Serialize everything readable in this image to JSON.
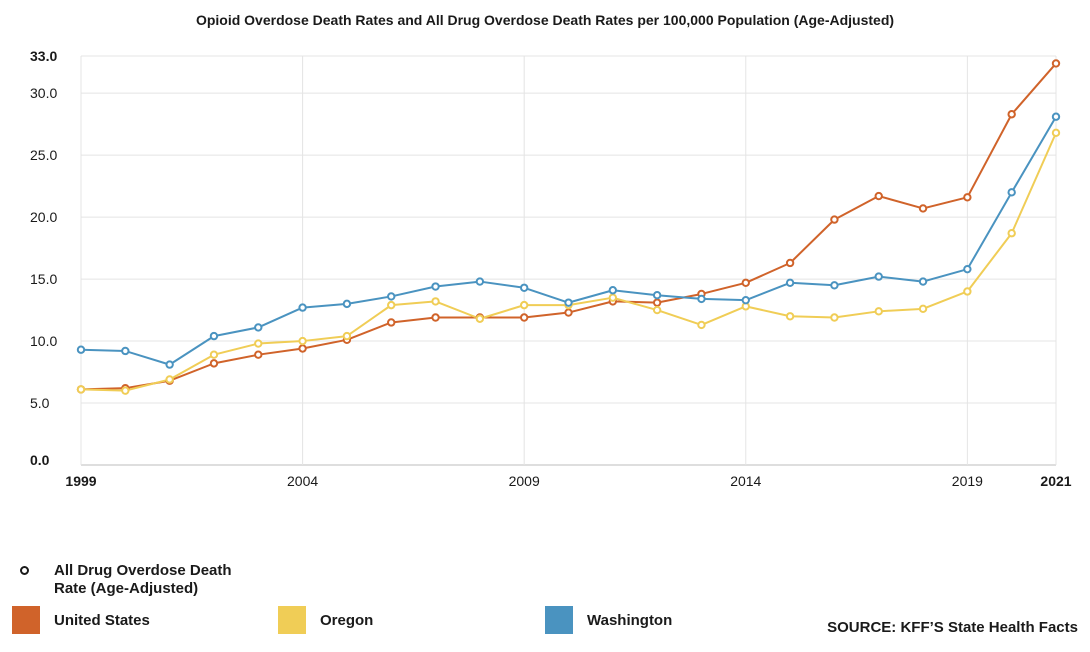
{
  "chart_data": {
    "type": "line",
    "title": "Opioid Overdose Death Rates and All Drug Overdose Death Rates per 100,000 Population  (Age-Adjusted)",
    "x": [
      1999,
      2000,
      2001,
      2002,
      2003,
      2004,
      2005,
      2006,
      2007,
      2008,
      2009,
      2010,
      2011,
      2012,
      2013,
      2014,
      2015,
      2016,
      2017,
      2018,
      2019,
      2020,
      2021
    ],
    "x_tick_labels": [
      "1999",
      "2004",
      "2009",
      "2014",
      "2019",
      "2021"
    ],
    "y_tick_labels": [
      "0.0",
      "5.0",
      "10.0",
      "15.0",
      "20.0",
      "25.0",
      "30.0",
      "33.0"
    ],
    "ylim": [
      0,
      33
    ],
    "grid": true,
    "series": [
      {
        "name": "United States",
        "color": "#d0632a",
        "values": [
          6.1,
          6.2,
          6.8,
          8.2,
          8.9,
          9.4,
          10.1,
          11.5,
          11.9,
          11.9,
          11.9,
          12.3,
          13.2,
          13.1,
          13.8,
          14.7,
          16.3,
          19.8,
          21.7,
          20.7,
          21.6,
          28.3,
          32.4
        ]
      },
      {
        "name": "Oregon",
        "color": "#f0cd56",
        "values": [
          6.1,
          6.0,
          6.9,
          8.9,
          9.8,
          10.0,
          10.4,
          12.9,
          13.2,
          11.8,
          12.9,
          12.9,
          13.5,
          12.5,
          11.3,
          12.8,
          12.0,
          11.9,
          12.4,
          12.6,
          14.0,
          18.7,
          26.8
        ]
      },
      {
        "name": "Washington",
        "color": "#4a93c0",
        "values": [
          9.3,
          9.2,
          8.1,
          10.4,
          11.1,
          12.7,
          13.0,
          13.6,
          14.4,
          14.8,
          14.3,
          13.1,
          14.1,
          13.7,
          13.4,
          13.3,
          14.7,
          14.5,
          15.2,
          14.8,
          15.8,
          22.0,
          28.1
        ]
      }
    ],
    "legend": {
      "marker_label": "All Drug Overdose Death Rate (Age-Adjusted)",
      "marker_label_line1": "All Drug Overdose Death",
      "marker_label_line2": "Rate (Age-Adjusted)",
      "placement": "bottom"
    },
    "source": "SOURCE: KFF’S State Health Facts"
  }
}
